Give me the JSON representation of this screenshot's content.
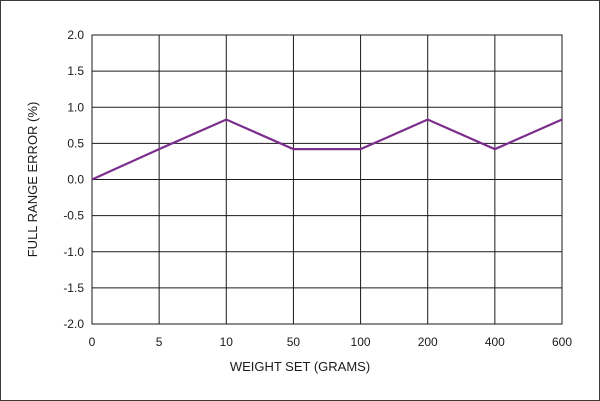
{
  "chart_data": {
    "type": "line",
    "categories": [
      "0",
      "5",
      "10",
      "50",
      "100",
      "200",
      "400",
      "600"
    ],
    "series": [
      {
        "values": [
          0.0,
          0.42,
          0.83,
          0.42,
          0.42,
          0.83,
          0.42,
          0.83
        ]
      }
    ],
    "xlabel": "WEIGHT SET (GRAMS)",
    "ylabel": "FULL RANGE ERROR (%)",
    "ylim": [
      -2.0,
      2.0
    ],
    "yticks": [
      "2.0",
      "1.5",
      "1.0",
      "0.5",
      "0.0",
      "-0.5",
      "-1.0",
      "-1.5",
      "-2.0"
    ],
    "ytick_values": [
      2.0,
      1.5,
      1.0,
      0.5,
      0.0,
      -0.5,
      -1.0,
      -1.5,
      -2.0
    ],
    "grid": true,
    "series_color": "#7b2d8e"
  }
}
